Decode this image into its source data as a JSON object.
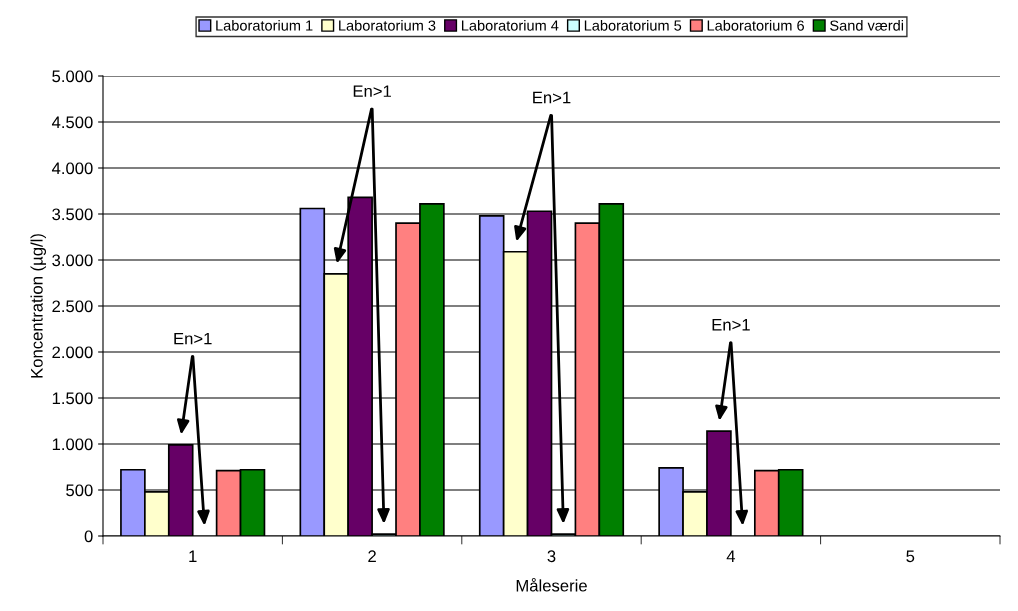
{
  "chart_data": {
    "type": "bar",
    "xlabel": "Måleserie",
    "ylabel": "Koncentration (µg/l)",
    "categories": [
      "1",
      "2",
      "3",
      "4",
      "5"
    ],
    "series": [
      {
        "name": "Laboratorium 1",
        "color": "#9999ff",
        "values": [
          720,
          3560,
          3480,
          740,
          null
        ]
      },
      {
        "name": "Laboratorium 3",
        "color": "#ffffcc",
        "values": [
          480,
          2850,
          3090,
          480,
          null
        ]
      },
      {
        "name": "Laboratorium 4",
        "color": "#660066",
        "values": [
          990,
          3680,
          3530,
          1140,
          null
        ]
      },
      {
        "name": "Laboratorium 5",
        "color": "#ccffff",
        "values": [
          null,
          20,
          20,
          null,
          null
        ]
      },
      {
        "name": "Laboratorium 6",
        "color": "#ff8080",
        "values": [
          710,
          3400,
          3400,
          710,
          null
        ]
      },
      {
        "name": "Sand værdi",
        "color": "#008000",
        "values": [
          720,
          3610,
          3610,
          720,
          null
        ]
      }
    ],
    "annotations": [
      "En>1",
      "En>1",
      "En>1",
      "En>1"
    ],
    "ylim": [
      0,
      5000
    ],
    "yticks": [
      {
        "value": 0,
        "label": "0"
      },
      {
        "value": 500,
        "label": "500"
      },
      {
        "value": 1000,
        "label": "1.000"
      },
      {
        "value": 1500,
        "label": "1.500"
      },
      {
        "value": 2000,
        "label": "2.000"
      },
      {
        "value": 2500,
        "label": "2.500"
      },
      {
        "value": 3000,
        "label": "3.000"
      },
      {
        "value": 3500,
        "label": "3.500"
      },
      {
        "value": 4000,
        "label": "4.000"
      },
      {
        "value": 4500,
        "label": "4.500"
      },
      {
        "value": 5000,
        "label": "5.000"
      }
    ],
    "grid": "y",
    "legend": "top"
  }
}
